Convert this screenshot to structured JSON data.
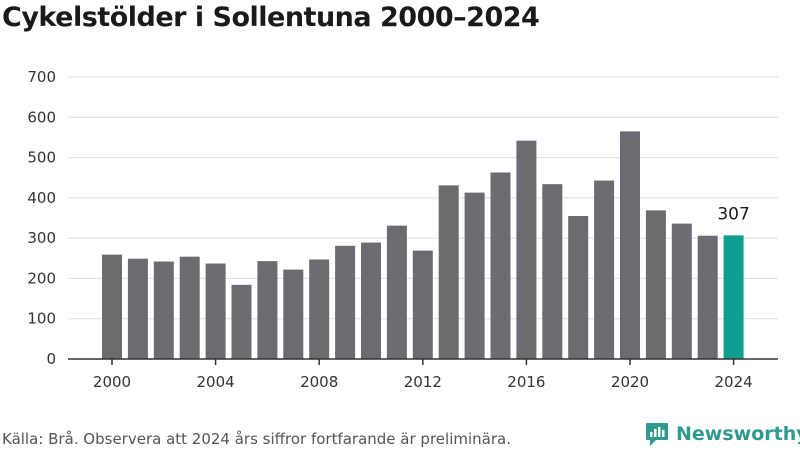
{
  "chart_data": {
    "type": "bar",
    "title": "Cykelstölder i Sollentuna 2000–2024",
    "categories": [
      "2000",
      "2001",
      "2002",
      "2003",
      "2004",
      "2005",
      "2006",
      "2007",
      "2008",
      "2009",
      "2010",
      "2011",
      "2012",
      "2013",
      "2014",
      "2015",
      "2016",
      "2017",
      "2018",
      "2019",
      "2020",
      "2021",
      "2022",
      "2023",
      "2024"
    ],
    "values": [
      259,
      249,
      242,
      254,
      237,
      184,
      243,
      222,
      247,
      281,
      289,
      331,
      269,
      431,
      413,
      463,
      542,
      434,
      355,
      443,
      565,
      369,
      336,
      306,
      307
    ],
    "x_tick_labels": [
      "2000",
      "2004",
      "2008",
      "2012",
      "2016",
      "2020",
      "2024"
    ],
    "y_tick_labels": [
      "0",
      "100",
      "200",
      "300",
      "400",
      "500",
      "600",
      "700"
    ],
    "ylim": [
      0,
      700
    ],
    "grid": true,
    "highlight": {
      "category": "2024",
      "label": "307",
      "color": "#0e9f91"
    },
    "bar_color": "#6c6b72",
    "xlabel": "",
    "ylabel": ""
  },
  "source": "Källa: Brå. Observera att 2024 års siffror fortfarande är preliminära.",
  "brand": {
    "name": "Newsworthy",
    "color": "#2e9a90"
  }
}
